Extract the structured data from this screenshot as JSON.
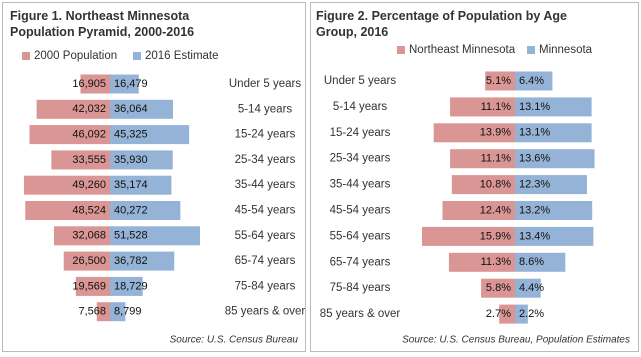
{
  "chart_data": [
    {
      "type": "butterfly",
      "title": "Figure 1. Northeast Minnesota Population Pyramid, 2000-2016",
      "categories": [
        "Under 5 years",
        "5-14 years",
        "15-24 years",
        "25-34 years",
        "35-44 years",
        "45-54 years",
        "55-64 years",
        "65-74 years",
        "75-84 years",
        "85 years & over"
      ],
      "series": [
        {
          "name": "2000 Population",
          "color": "#da9694",
          "values": [
            16905,
            42032,
            46092,
            33555,
            49260,
            48524,
            32068,
            26500,
            19569,
            7568
          ],
          "value_labels": [
            "16,905",
            "42,032",
            "46,092",
            "33,555",
            "49,260",
            "48,524",
            "32,068",
            "26,500",
            "19,569",
            "7,568"
          ]
        },
        {
          "name": "2016 Estimate",
          "color": "#95b3d7",
          "values": [
            16479,
            36064,
            45325,
            35930,
            35174,
            40272,
            51528,
            36782,
            18729,
            8799
          ],
          "value_labels": [
            "16,479",
            "36,064",
            "45,325",
            "35,930",
            "35,174",
            "40,272",
            "51,528",
            "36,782",
            "18,729",
            "8,799"
          ]
        }
      ],
      "source": "Source: U.S. Census Bureau"
    },
    {
      "type": "butterfly",
      "title": "Figure 2. Percentage of Population by Age Group, 2016",
      "categories": [
        "Under 5 years",
        "5-14 years",
        "15-24 years",
        "25-34 years",
        "35-44 years",
        "45-54 years",
        "55-64 years",
        "65-74 years",
        "75-84 years",
        "85 years & over"
      ],
      "series": [
        {
          "name": "Northeast Minnesota",
          "color": "#da9694",
          "values": [
            5.1,
            11.1,
            13.9,
            11.1,
            10.8,
            12.4,
            15.9,
            11.3,
            5.8,
            2.7
          ],
          "value_labels": [
            "5.1%",
            "11.1%",
            "13.9%",
            "11.1%",
            "10.8%",
            "12.4%",
            "15.9%",
            "11.3%",
            "5.8%",
            "2.7%"
          ]
        },
        {
          "name": "Minnesota",
          "color": "#95b3d7",
          "values": [
            6.4,
            13.1,
            13.1,
            13.6,
            12.3,
            13.2,
            13.4,
            8.6,
            4.4,
            2.2
          ],
          "value_labels": [
            "6.4%",
            "13.1%",
            "13.1%",
            "13.6%",
            "12.3%",
            "13.2%",
            "13.4%",
            "8.6%",
            "4.4%",
            "2.2%"
          ]
        }
      ],
      "source": "Source: U.S. Census Bureau, Population Estimates"
    }
  ]
}
